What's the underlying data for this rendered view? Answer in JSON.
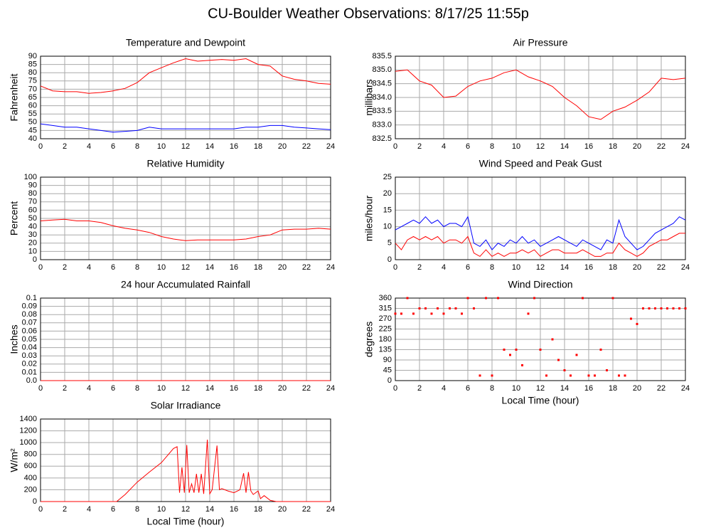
{
  "title": "CU-Boulder Weather Observations: 8/17/25 11:55p",
  "chart_data": [
    {
      "type": "line",
      "title": "Temperature and Dewpoint",
      "ylabel": "Fahrenheit",
      "x": [
        0,
        1,
        2,
        3,
        4,
        5,
        6,
        7,
        8,
        9,
        10,
        11,
        12,
        13,
        14,
        15,
        16,
        17,
        18,
        19,
        20,
        21,
        22,
        23,
        24
      ],
      "series": [
        {
          "color": "#ff0000",
          "values": [
            72,
            69,
            68.5,
            68.5,
            67.5,
            68,
            69,
            70.5,
            74,
            80,
            83,
            86,
            88.5,
            87,
            87.5,
            88,
            87.5,
            88.5,
            85,
            84,
            78,
            76,
            75,
            73.5,
            73
          ]
        },
        {
          "color": "#0000ff",
          "values": [
            49,
            48,
            47,
            47,
            46,
            45,
            44,
            44.5,
            45,
            47,
            46,
            46,
            46,
            46,
            46,
            46,
            46,
            47,
            47,
            48,
            48,
            47,
            46.5,
            46,
            45.5
          ]
        }
      ],
      "xlim": [
        0,
        24
      ],
      "xticks": [
        0,
        2,
        4,
        6,
        8,
        10,
        12,
        14,
        16,
        18,
        20,
        22,
        24
      ],
      "ylim": [
        40,
        90
      ],
      "yticks": [
        40,
        45,
        50,
        55,
        60,
        65,
        70,
        75,
        80,
        85,
        90
      ],
      "grid": true
    },
    {
      "type": "line",
      "title": "Air Pressure",
      "ylabel": "millibars",
      "x": [
        0,
        1,
        2,
        3,
        4,
        5,
        6,
        7,
        8,
        9,
        10,
        11,
        12,
        13,
        14,
        15,
        16,
        17,
        18,
        19,
        20,
        21,
        22,
        23,
        24
      ],
      "series": [
        {
          "color": "#ff0000",
          "values": [
            834.95,
            835.0,
            834.6,
            834.45,
            834.0,
            834.05,
            834.4,
            834.6,
            834.7,
            834.9,
            835.0,
            834.75,
            834.6,
            834.4,
            834.0,
            833.7,
            833.3,
            833.2,
            833.5,
            833.65,
            833.9,
            834.2,
            834.7,
            834.65,
            834.7
          ]
        }
      ],
      "xlim": [
        0,
        24
      ],
      "xticks": [
        0,
        2,
        4,
        6,
        8,
        10,
        12,
        14,
        16,
        18,
        20,
        22,
        24
      ],
      "ylim": [
        832.5,
        835.5
      ],
      "yticks": [
        832.5,
        {
          "value": 833,
          "label": "833.0"
        },
        833.5,
        {
          "value": 834,
          "label": "834.0"
        },
        834.5,
        {
          "value": 835,
          "label": "835.0"
        },
        835.5
      ],
      "grid": true
    },
    {
      "type": "line",
      "title": "Relative Humidity",
      "ylabel": "Percent",
      "x": [
        0,
        1,
        2,
        3,
        4,
        5,
        6,
        7,
        8,
        9,
        10,
        11,
        12,
        13,
        14,
        15,
        16,
        17,
        18,
        19,
        20,
        21,
        22,
        23,
        24
      ],
      "series": [
        {
          "color": "#ff0000",
          "values": [
            47,
            48,
            49,
            47,
            47,
            45,
            41,
            38,
            36,
            33,
            28,
            25,
            23,
            24,
            24,
            24,
            24,
            25,
            28,
            30,
            36,
            37,
            37,
            38,
            37
          ]
        }
      ],
      "xlim": [
        0,
        24
      ],
      "xticks": [
        0,
        2,
        4,
        6,
        8,
        10,
        12,
        14,
        16,
        18,
        20,
        22,
        24
      ],
      "ylim": [
        0,
        100
      ],
      "yticks": [
        0,
        10,
        20,
        30,
        40,
        50,
        60,
        70,
        80,
        90,
        100
      ],
      "grid": true
    },
    {
      "type": "line",
      "title": "Wind Speed and Peak Gust",
      "ylabel": "miles/hour",
      "x": [
        0,
        0.5,
        1,
        1.5,
        2,
        2.5,
        3,
        3.5,
        4,
        4.5,
        5,
        5.5,
        6,
        6.5,
        7,
        7.5,
        8,
        8.5,
        9,
        9.5,
        10,
        10.5,
        11,
        11.5,
        12,
        12.5,
        13,
        13.5,
        14,
        14.5,
        15,
        15.5,
        16,
        16.5,
        17,
        17.5,
        18,
        18.5,
        19,
        19.5,
        20,
        20.5,
        21,
        21.5,
        22,
        22.5,
        23,
        23.5,
        24
      ],
      "series": [
        {
          "color": "#0000ff",
          "values": [
            9,
            10,
            11,
            12,
            11,
            13,
            11,
            12,
            10,
            11,
            11,
            10,
            13,
            5,
            4,
            6,
            3,
            5,
            4,
            6,
            5,
            7,
            5,
            6,
            4,
            5,
            6,
            7,
            6,
            5,
            4,
            6,
            5,
            4,
            3,
            6,
            5,
            12,
            7,
            5,
            3,
            4,
            6,
            8,
            9,
            10,
            11,
            13,
            12
          ]
        },
        {
          "color": "#ff0000",
          "values": [
            5,
            3,
            6,
            7,
            6,
            7,
            6,
            7,
            5,
            6,
            6,
            5,
            7,
            2,
            1,
            3,
            1,
            2,
            1,
            2,
            2,
            3,
            2,
            3,
            1,
            2,
            3,
            3,
            2,
            2,
            2,
            3,
            2,
            1,
            1,
            2,
            2,
            5,
            3,
            2,
            1,
            2,
            4,
            5,
            6,
            6,
            7,
            8,
            8
          ]
        }
      ],
      "xlim": [
        0,
        24
      ],
      "xticks": [
        0,
        2,
        4,
        6,
        8,
        10,
        12,
        14,
        16,
        18,
        20,
        22,
        24
      ],
      "ylim": [
        0,
        25
      ],
      "yticks": [
        0,
        5,
        10,
        15,
        20,
        25
      ],
      "grid": true
    },
    {
      "type": "line",
      "title": "24 hour Accumulated Rainfall",
      "ylabel": "Inches",
      "x": [
        0,
        24
      ],
      "series": [
        {
          "color": "#ff0000",
          "values": [
            0,
            0
          ]
        }
      ],
      "xlim": [
        0,
        24
      ],
      "xticks": [
        0,
        2,
        4,
        6,
        8,
        10,
        12,
        14,
        16,
        18,
        20,
        22,
        24
      ],
      "ylim": [
        0,
        0.1
      ],
      "yticks": [
        {
          "value": 0,
          "label": "0.0"
        },
        0.01,
        0.02,
        0.03,
        0.04,
        0.05,
        0.06,
        0.07,
        0.08,
        0.09,
        0.1
      ],
      "grid": true
    },
    {
      "type": "scatter",
      "title": "Wind Direction",
      "ylabel": "degrees",
      "xlabel": "Local Time (hour)",
      "x": [
        0,
        0.5,
        1,
        1.5,
        2,
        2.5,
        3,
        3.5,
        4,
        4.5,
        5,
        5.5,
        6,
        6.5,
        7,
        7.5,
        8,
        8.5,
        9,
        9.5,
        10,
        10.5,
        11,
        11.5,
        12,
        12.5,
        13,
        13.5,
        14,
        14.5,
        15,
        15.5,
        16,
        16.5,
        17,
        17.5,
        18,
        18.5,
        19,
        19.5,
        20,
        20.5,
        21,
        21.5,
        22,
        22.5,
        23,
        23.5,
        24
      ],
      "series": [
        {
          "color": "#ff0000",
          "values": [
            292,
            292,
            360,
            292,
            315,
            315,
            292,
            315,
            292,
            315,
            315,
            292,
            360,
            315,
            22,
            360,
            22,
            360,
            135,
            112,
            135,
            67,
            292,
            360,
            135,
            22,
            180,
            90,
            45,
            22,
            112,
            360,
            22,
            22,
            135,
            45,
            360,
            22,
            22,
            270,
            247,
            315,
            315,
            315,
            315,
            315,
            315,
            315,
            315
          ]
        }
      ],
      "xlim": [
        0,
        24
      ],
      "xticks": [
        0,
        2,
        4,
        6,
        8,
        10,
        12,
        14,
        16,
        18,
        20,
        22,
        24
      ],
      "ylim": [
        0,
        360
      ],
      "yticks": [
        0,
        45,
        90,
        135,
        180,
        225,
        270,
        315,
        360
      ],
      "grid": true
    },
    {
      "type": "line",
      "title": "Solar Irradiance",
      "ylabel": "W/m²",
      "xlabel": "Local Time (hour)",
      "x": [
        0,
        6.3,
        7,
        8,
        9,
        10,
        11,
        11.3,
        11.5,
        11.7,
        11.9,
        12.1,
        12.3,
        12.5,
        12.7,
        12.9,
        13.1,
        13.3,
        13.5,
        13.8,
        14,
        14.2,
        14.6,
        14.8,
        15,
        15.5,
        16,
        16.5,
        16.8,
        17,
        17.2,
        17.4,
        17.6,
        18,
        18.2,
        18.5,
        19,
        19.5,
        20,
        24
      ],
      "series": [
        {
          "color": "#ff0000",
          "values": [
            0,
            0,
            120,
            330,
            500,
            660,
            900,
            930,
            150,
            580,
            150,
            960,
            150,
            300,
            150,
            470,
            150,
            470,
            130,
            1050,
            130,
            200,
            950,
            200,
            220,
            180,
            150,
            200,
            480,
            150,
            500,
            180,
            120,
            180,
            50,
            100,
            20,
            0,
            0,
            0
          ]
        }
      ],
      "xlim": [
        0,
        24
      ],
      "xticks": [
        0,
        2,
        4,
        6,
        8,
        10,
        12,
        14,
        16,
        18,
        20,
        22,
        24
      ],
      "ylim": [
        0,
        1400
      ],
      "yticks": [
        0,
        200,
        400,
        600,
        800,
        1000,
        1200,
        1400
      ],
      "grid": true
    }
  ]
}
